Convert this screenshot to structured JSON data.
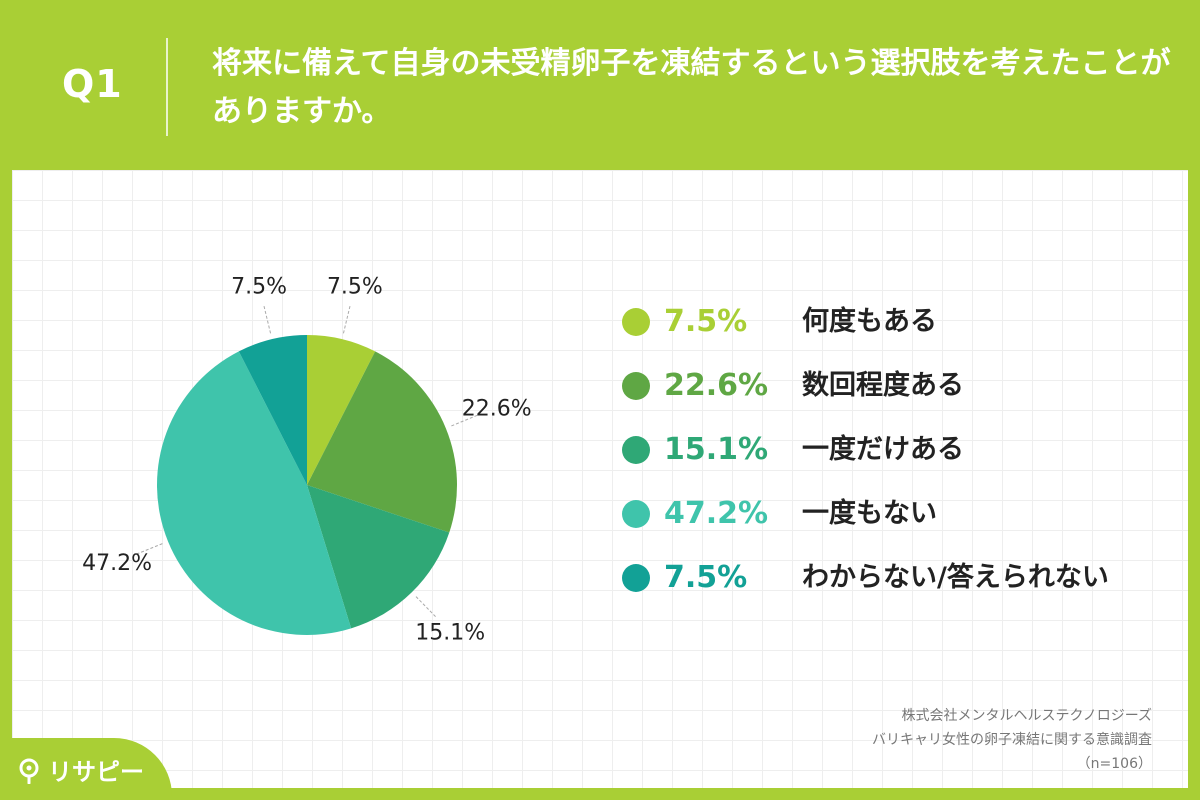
{
  "header": {
    "q_label": "Q1",
    "title": "将来に備えて自身の未受精卵子を凍結するという選択肢を考えたことがありますか。"
  },
  "chart_data": {
    "type": "pie",
    "slices": [
      {
        "label": "何度もある",
        "value": 7.5,
        "display": "7.5%",
        "color": "#a9cf35"
      },
      {
        "label": "数回程度ある",
        "value": 22.6,
        "display": "22.6%",
        "color": "#5fa744"
      },
      {
        "label": "一度だけある",
        "value": 15.1,
        "display": "15.1%",
        "color": "#2fa876"
      },
      {
        "label": "一度もない",
        "value": 47.2,
        "display": "47.2%",
        "color": "#3fc4ab"
      },
      {
        "label": "わからない/答えられない",
        "value": 7.5,
        "display": "7.5%",
        "color": "#12a196"
      }
    ]
  },
  "footer": {
    "source_line1": "株式会社メンタルヘルステクノロジーズ",
    "source_line2": "バリキャリ女性の卵子凍結に関する意識調査",
    "sample": "（n=106）",
    "logo_text": "リサピー"
  },
  "colors": {
    "background": "#a9cf35",
    "panel": "#ffffff"
  }
}
